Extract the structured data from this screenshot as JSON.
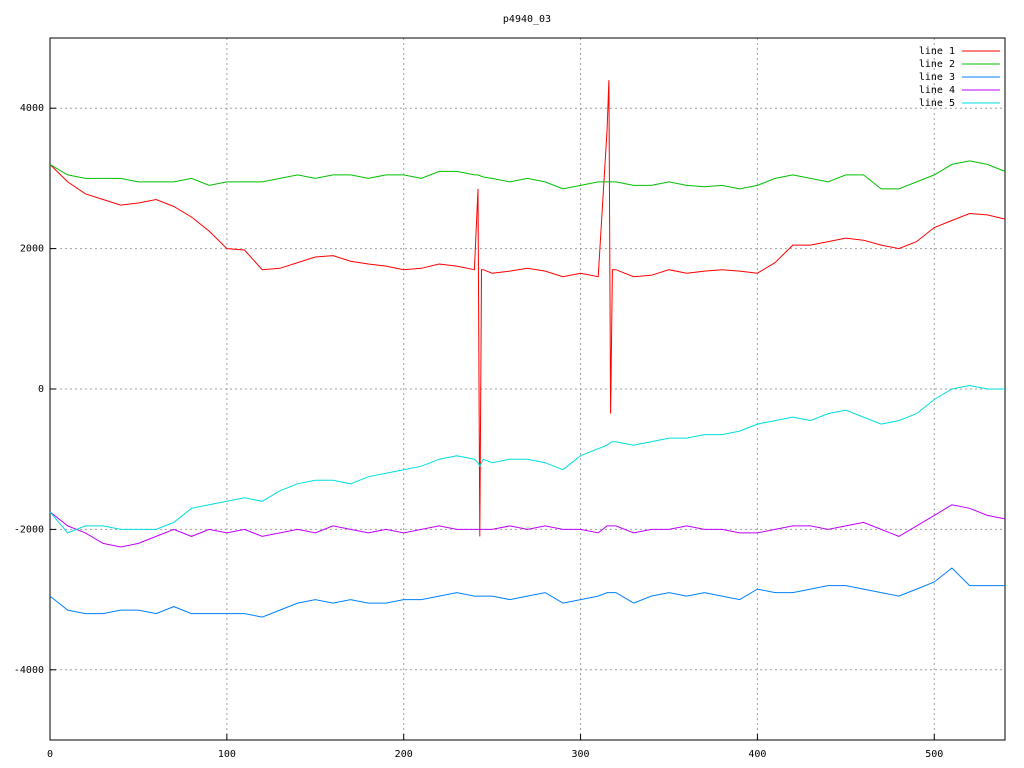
{
  "chart_data": {
    "type": "line",
    "title": "p4940_03",
    "x": [
      0,
      10,
      20,
      30,
      40,
      50,
      60,
      70,
      80,
      90,
      100,
      110,
      120,
      130,
      140,
      150,
      160,
      170,
      180,
      190,
      200,
      210,
      220,
      230,
      240,
      242,
      243,
      244,
      245,
      250,
      260,
      270,
      280,
      290,
      300,
      310,
      315,
      316,
      317,
      318,
      320,
      330,
      340,
      350,
      360,
      370,
      380,
      390,
      400,
      410,
      420,
      430,
      440,
      450,
      460,
      470,
      480,
      490,
      500,
      510,
      520,
      530,
      540
    ],
    "series": [
      {
        "name": "line 1",
        "color": "#ff0000",
        "values": [
          3200,
          2950,
          2780,
          2700,
          2620,
          2650,
          2700,
          2600,
          2450,
          2250,
          2000,
          1980,
          1700,
          1720,
          1800,
          1880,
          1900,
          1820,
          1780,
          1750,
          1700,
          1720,
          1780,
          1750,
          1700,
          2850,
          -2100,
          1700,
          1700,
          1650,
          1680,
          1720,
          1680,
          1600,
          1650,
          1600,
          3700,
          4400,
          -350,
          1700,
          1700,
          1600,
          1620,
          1700,
          1650,
          1680,
          1700,
          1680,
          1650,
          1800,
          2050,
          2050,
          2100,
          2150,
          2120,
          2050,
          2000,
          2100,
          2300,
          2400,
          2500,
          2480,
          2420
        ]
      },
      {
        "name": "line 2",
        "color": "#00c000",
        "values": [
          3200,
          3050,
          3000,
          3000,
          3000,
          2950,
          2950,
          2950,
          3000,
          2900,
          2950,
          2950,
          2950,
          3000,
          3050,
          3000,
          3050,
          3050,
          3000,
          3050,
          3050,
          3000,
          3100,
          3100,
          3050,
          3050,
          3040,
          3030,
          3020,
          3000,
          2950,
          3000,
          2950,
          2850,
          2900,
          2950,
          2950,
          2950,
          2950,
          2950,
          2950,
          2900,
          2900,
          2950,
          2900,
          2880,
          2900,
          2850,
          2900,
          3000,
          3050,
          3000,
          2950,
          3050,
          3050,
          2850,
          2850,
          2950,
          3050,
          3200,
          3250,
          3200,
          3100
        ]
      },
      {
        "name": "line 3",
        "color": "#0080ff",
        "values": [
          -2950,
          -3150,
          -3200,
          -3200,
          -3150,
          -3150,
          -3200,
          -3100,
          -3200,
          -3200,
          -3200,
          -3200,
          -3250,
          -3150,
          -3050,
          -3000,
          -3050,
          -3000,
          -3050,
          -3050,
          -3000,
          -3000,
          -2950,
          -2900,
          -2950,
          -2950,
          -2950,
          -2950,
          -2950,
          -2950,
          -3000,
          -2950,
          -2900,
          -3050,
          -3000,
          -2950,
          -2900,
          -2900,
          -2900,
          -2900,
          -2900,
          -3050,
          -2950,
          -2900,
          -2950,
          -2900,
          -2950,
          -3000,
          -2850,
          -2900,
          -2900,
          -2850,
          -2800,
          -2800,
          -2850,
          -2900,
          -2950,
          -2850,
          -2750,
          -2550,
          -2800,
          -2800,
          -2800
        ]
      },
      {
        "name": "line 4",
        "color": "#c000ff",
        "values": [
          -1750,
          -1950,
          -2050,
          -2200,
          -2250,
          -2200,
          -2100,
          -2000,
          -2100,
          -2000,
          -2050,
          -2000,
          -2100,
          -2050,
          -2000,
          -2050,
          -1950,
          -2000,
          -2050,
          -2000,
          -2050,
          -2000,
          -1950,
          -2000,
          -2000,
          -2000,
          -2000,
          -2000,
          -2000,
          -2000,
          -1950,
          -2000,
          -1950,
          -2000,
          -2000,
          -2050,
          -1950,
          -1950,
          -1950,
          -1950,
          -1950,
          -2050,
          -2000,
          -2000,
          -1950,
          -2000,
          -2000,
          -2050,
          -2050,
          -2000,
          -1950,
          -1950,
          -2000,
          -1950,
          -1900,
          -2000,
          -2100,
          -1950,
          -1800,
          -1650,
          -1700,
          -1800,
          -1850
        ]
      },
      {
        "name": "line 5",
        "color": "#00dddd",
        "values": [
          -1750,
          -2050,
          -1950,
          -1950,
          -2000,
          -2000,
          -2000,
          -1900,
          -1700,
          -1650,
          -1600,
          -1550,
          -1600,
          -1450,
          -1350,
          -1300,
          -1300,
          -1350,
          -1250,
          -1200,
          -1150,
          -1100,
          -1000,
          -950,
          -1000,
          -1050,
          -1100,
          -1050,
          -1000,
          -1050,
          -1000,
          -1000,
          -1050,
          -1150,
          -950,
          -850,
          -800,
          -780,
          -760,
          -750,
          -750,
          -800,
          -750,
          -700,
          -700,
          -650,
          -650,
          -600,
          -500,
          -450,
          -400,
          -450,
          -350,
          -300,
          -400,
          -500,
          -450,
          -350,
          -150,
          0,
          50,
          0,
          0
        ]
      }
    ],
    "xlim": [
      0,
      540
    ],
    "xticks": [
      0,
      100,
      200,
      300,
      400,
      500
    ],
    "ylim": [
      -5000,
      5000
    ],
    "yticks": [
      -4000,
      -2000,
      0,
      2000,
      4000
    ],
    "grid": true,
    "legend": "top-right"
  }
}
